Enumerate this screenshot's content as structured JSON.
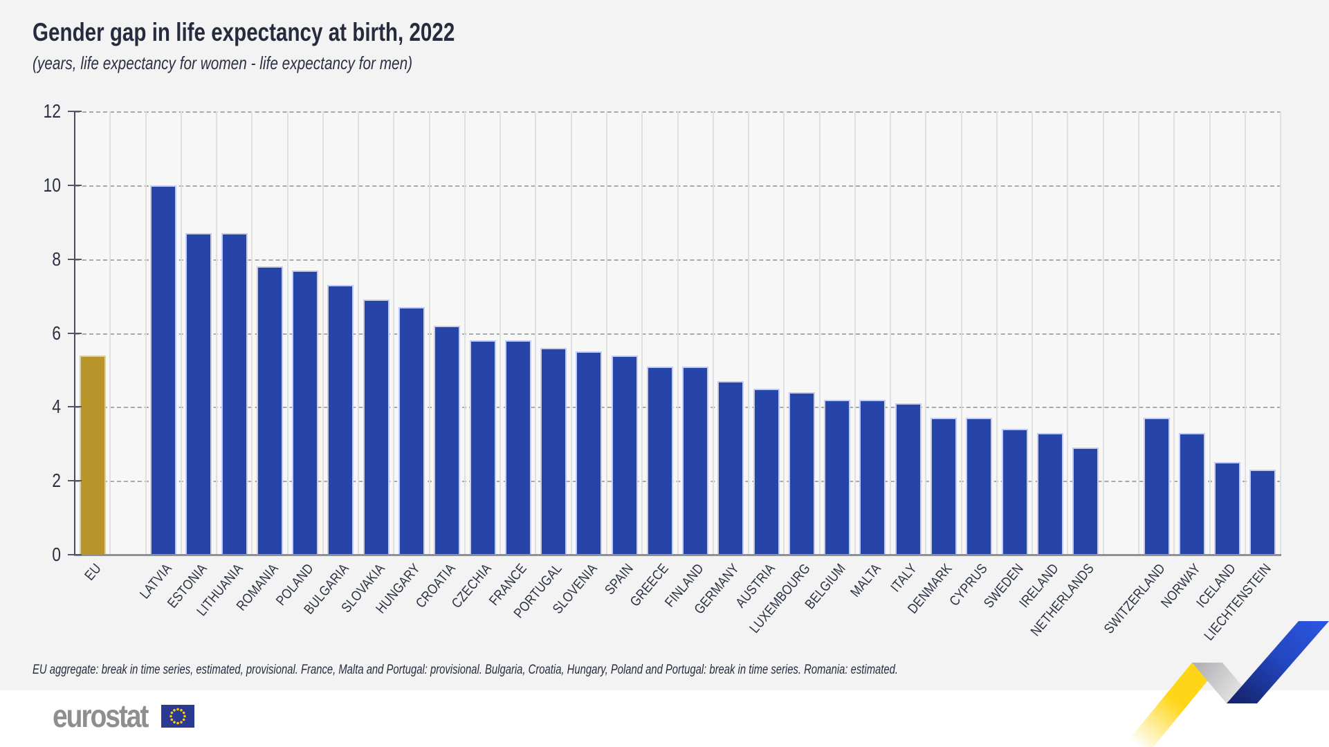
{
  "header": {
    "title": "Gender gap in life expectancy at birth, 2022",
    "subtitle": "(years, life expectancy for women - life expectancy for men)"
  },
  "chart_data": {
    "type": "bar",
    "title": "Gender gap in life expectancy at birth, 2022",
    "subtitle": "(years, life expectancy for women - life expectancy for men)",
    "unit": "years",
    "ylim": [
      0,
      12
    ],
    "yticks": [
      0,
      2,
      4,
      6,
      8,
      10,
      12
    ],
    "grid": {
      "horizontal": "dashed",
      "vertical": "solid-light"
    },
    "legend_position": "none",
    "series": [
      {
        "name": "eu_aggregate",
        "color": "#b8942a",
        "edge_color": "#d8d0a5",
        "data": [
          {
            "label": "EU",
            "value": 5.4
          }
        ]
      },
      {
        "name": "eu_member_states",
        "color": "#2745a8",
        "edge_color": "#c5cdea",
        "data": [
          {
            "label": "LATVIA",
            "value": 10.0
          },
          {
            "label": "ESTONIA",
            "value": 8.7
          },
          {
            "label": "LITHUANIA",
            "value": 8.7
          },
          {
            "label": "ROMANIA",
            "value": 7.8
          },
          {
            "label": "POLAND",
            "value": 7.7
          },
          {
            "label": "BULGARIA",
            "value": 7.3
          },
          {
            "label": "SLOVAKIA",
            "value": 6.9
          },
          {
            "label": "HUNGARY",
            "value": 6.7
          },
          {
            "label": "CROATIA",
            "value": 6.2
          },
          {
            "label": "CZECHIA",
            "value": 5.8
          },
          {
            "label": "FRANCE",
            "value": 5.8
          },
          {
            "label": "PORTUGAL",
            "value": 5.6
          },
          {
            "label": "SLOVENIA",
            "value": 5.5
          },
          {
            "label": "SPAIN",
            "value": 5.4
          },
          {
            "label": "GREECE",
            "value": 5.1
          },
          {
            "label": "FINLAND",
            "value": 5.1
          },
          {
            "label": "GERMANY",
            "value": 4.7
          },
          {
            "label": "AUSTRIA",
            "value": 4.5
          },
          {
            "label": "LUXEMBOURG",
            "value": 4.4
          },
          {
            "label": "BELGIUM",
            "value": 4.2
          },
          {
            "label": "MALTA",
            "value": 4.2
          },
          {
            "label": "ITALY",
            "value": 4.1
          },
          {
            "label": "DENMARK",
            "value": 3.7
          },
          {
            "label": "CYPRUS",
            "value": 3.7
          },
          {
            "label": "SWEDEN",
            "value": 3.4
          },
          {
            "label": "IRELAND",
            "value": 3.3
          },
          {
            "label": "NETHERLANDS",
            "value": 2.9
          }
        ]
      },
      {
        "name": "efta_countries",
        "color": "#2745a8",
        "edge_color": "#c5cdea",
        "data": [
          {
            "label": "SWITZERLAND",
            "value": 3.7
          },
          {
            "label": "NORWAY",
            "value": 3.3
          },
          {
            "label": "ICELAND",
            "value": 2.5
          },
          {
            "label": "LIECHTENSTEIN",
            "value": 2.3
          }
        ]
      }
    ]
  },
  "footnote": {
    "text": "EU aggregate: break in time series, estimated, provisional. France, Malta and Portugal: provisional. Bulgaria, Croatia, Hungary, Poland and Portugal: break in time series. Romania: estimated."
  },
  "logo": {
    "wordmark": "eurostat"
  },
  "colors": {
    "page_background": "#f3f3f4",
    "plot_background": "#f7f7f8",
    "bar_blue": "#2745a8",
    "bar_gold": "#b8942a",
    "axis": "#454a5e",
    "baseline": "#8f9094",
    "gridline_dashed": "#a9a9a9",
    "gridline_vertical": "#e0e0e1",
    "text_dark": "#262c3e",
    "logo_gray": "#8e8e8e",
    "ribbon_yellow": "#ffd617",
    "ribbon_gray": "#b9b9bc",
    "ribbon_blue": "#2950d8",
    "flag_blue": "#293a90",
    "flag_star_yellow": "#ffcc00"
  }
}
